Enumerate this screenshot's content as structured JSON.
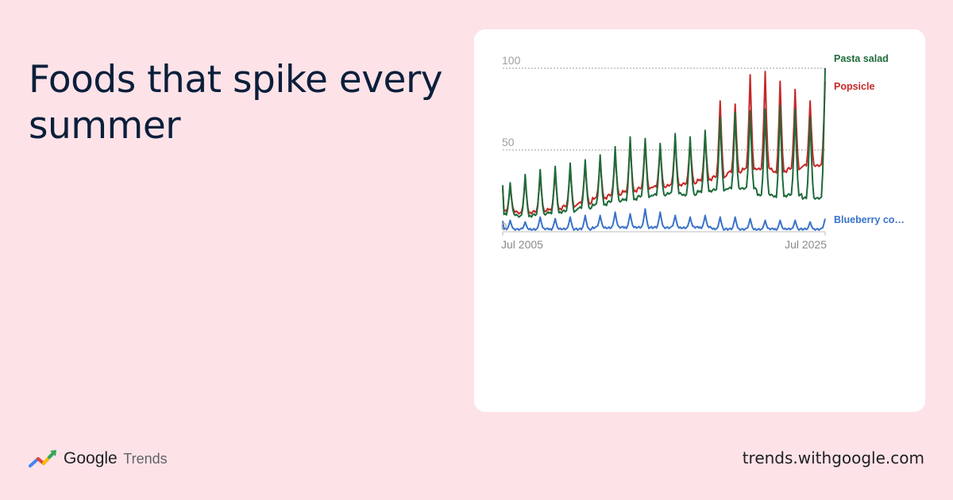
{
  "headline": "Foods that spike every summer",
  "brand": {
    "google": "Google",
    "product": "Trends"
  },
  "footer_url": "trends.withgoogle.com",
  "colors": {
    "background": "#fde3e8",
    "pasta_salad": "#1e6b3a",
    "popsicle": "#c62828",
    "blueberry": "#3a73c9"
  },
  "chart_data": {
    "type": "line",
    "title": "",
    "xlabel": "",
    "ylabel": "",
    "ylim": [
      0,
      100
    ],
    "grid": true,
    "y_ticks": [
      {
        "value": 100,
        "label": "100"
      },
      {
        "value": 50,
        "label": "50"
      },
      {
        "value": 0,
        "label": "0"
      }
    ],
    "x_ticks": [
      "Jul 2005",
      "Jul 2025"
    ],
    "x_range": [
      "2005-01",
      "2025-07"
    ],
    "series": [
      {
        "name": "Pasta salad",
        "legend_label": "Pasta salad",
        "color": "#1e6b3a",
        "peaks": [
          30,
          35,
          38,
          40,
          42,
          44,
          47,
          52,
          58,
          57,
          54,
          60,
          58,
          62,
          70,
          73,
          74,
          75,
          77,
          75,
          70,
          100
        ],
        "troughs": [
          10,
          9,
          10,
          11,
          12,
          14,
          16,
          18,
          19,
          21,
          22,
          23,
          22,
          24,
          25,
          26,
          26,
          22,
          21,
          22,
          20
        ]
      },
      {
        "name": "Popsicle",
        "legend_label": "Popsicle",
        "color": "#c62828",
        "peaks": [
          28,
          33,
          35,
          37,
          39,
          42,
          45,
          48,
          55,
          55,
          52,
          58,
          56,
          60,
          80,
          78,
          96,
          98,
          92,
          87,
          80,
          92
        ],
        "troughs": [
          12,
          11,
          12,
          13,
          15,
          17,
          20,
          22,
          24,
          26,
          27,
          28,
          29,
          31,
          33,
          36,
          38,
          38,
          36,
          38,
          40
        ]
      },
      {
        "name": "Blueberry cobbler",
        "legend_label": "Blueberry co…",
        "color": "#3a73c9",
        "peaks": [
          7,
          6,
          9,
          8,
          9,
          10,
          10,
          12,
          11,
          14,
          12,
          10,
          9,
          10,
          9,
          9,
          8,
          7,
          7,
          7,
          6,
          8
        ],
        "troughs": [
          1,
          1,
          1,
          1,
          1,
          1,
          2,
          2,
          2,
          2,
          2,
          2,
          2,
          2,
          1,
          1,
          1,
          1,
          1,
          1,
          1
        ]
      }
    ]
  }
}
